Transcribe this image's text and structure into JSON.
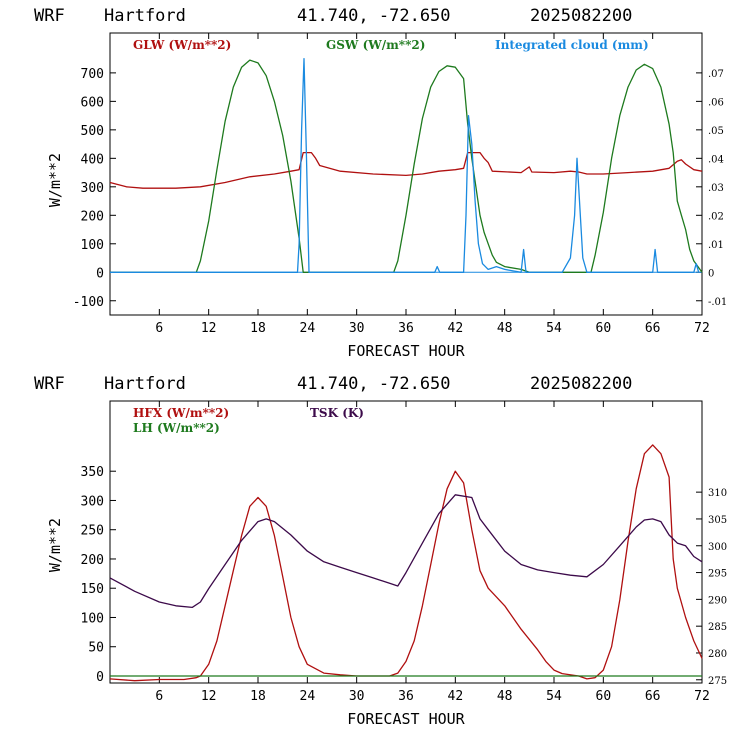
{
  "colors": {
    "red": "#b01010",
    "green": "#1e7a1e",
    "blue": "#1a8ae0",
    "purple": "#3c0a4a",
    "zero_line": "#1e7a1e"
  },
  "chart_data": [
    {
      "type": "line",
      "header": {
        "model": "WRF",
        "site": "Hartford",
        "coords": "41.740, -72.650",
        "run": "2025082200"
      },
      "xlabel": "FORECAST HOUR",
      "ylabel": "W/m**2",
      "xlim": [
        0,
        72
      ],
      "ylim": [
        -150,
        840
      ],
      "y2lim": [
        -0.015,
        0.084
      ],
      "x_ticks": [
        6,
        12,
        18,
        24,
        30,
        36,
        42,
        48,
        54,
        60,
        66,
        72
      ],
      "y_ticks": [
        -100,
        0,
        100,
        200,
        300,
        400,
        500,
        600,
        700
      ],
      "y2_ticks": [
        -0.01,
        0,
        0.01,
        0.02,
        0.03,
        0.04,
        0.05,
        0.06,
        0.07
      ],
      "y2_tick_labels": [
        "-.01",
        "0",
        ".01",
        ".02",
        ".03",
        ".04",
        ".05",
        ".06",
        ".07"
      ],
      "series": [
        {
          "name": "GLW (W/m**2)",
          "axis": "left",
          "points": [
            [
              0,
              315
            ],
            [
              2,
              300
            ],
            [
              4,
              295
            ],
            [
              8,
              295
            ],
            [
              11,
              300
            ],
            [
              14,
              315
            ],
            [
              17,
              335
            ],
            [
              20,
              345
            ],
            [
              22,
              355
            ],
            [
              23,
              360
            ],
            [
              23.5,
              420
            ],
            [
              24.5,
              420
            ],
            [
              25,
              400
            ],
            [
              25.5,
              375
            ],
            [
              28,
              355
            ],
            [
              32,
              345
            ],
            [
              36,
              340
            ],
            [
              38,
              345
            ],
            [
              40,
              355
            ],
            [
              42,
              360
            ],
            [
              43,
              365
            ],
            [
              43.5,
              420
            ],
            [
              45,
              420
            ],
            [
              45.5,
              400
            ],
            [
              46,
              385
            ],
            [
              46.5,
              355
            ],
            [
              50,
              350
            ],
            [
              51,
              370
            ],
            [
              51.3,
              352
            ],
            [
              54,
              350
            ],
            [
              56,
              355
            ],
            [
              57,
              352
            ],
            [
              58,
              345
            ],
            [
              60,
              345
            ],
            [
              63,
              350
            ],
            [
              66,
              355
            ],
            [
              68,
              365
            ],
            [
              69,
              390
            ],
            [
              69.5,
              395
            ],
            [
              70,
              380
            ],
            [
              71,
              360
            ],
            [
              72,
              355
            ]
          ]
        },
        {
          "name": "GSW (W/m**2)",
          "axis": "left",
          "points": [
            [
              0,
              0
            ],
            [
              10.5,
              0
            ],
            [
              11,
              40
            ],
            [
              12,
              180
            ],
            [
              13,
              360
            ],
            [
              14,
              530
            ],
            [
              15,
              650
            ],
            [
              16,
              720
            ],
            [
              17,
              745
            ],
            [
              18,
              735
            ],
            [
              19,
              690
            ],
            [
              20,
              600
            ],
            [
              21,
              480
            ],
            [
              22,
              320
            ],
            [
              23,
              120
            ],
            [
              23.5,
              0
            ],
            [
              34.5,
              0
            ],
            [
              35,
              40
            ],
            [
              36,
              200
            ],
            [
              37,
              380
            ],
            [
              38,
              540
            ],
            [
              39,
              650
            ],
            [
              40,
              705
            ],
            [
              41,
              725
            ],
            [
              42,
              720
            ],
            [
              43,
              680
            ],
            [
              43.5,
              520
            ],
            [
              44,
              400
            ],
            [
              44.5,
              300
            ],
            [
              45,
              200
            ],
            [
              45.5,
              140
            ],
            [
              46,
              100
            ],
            [
              46.5,
              60
            ],
            [
              47,
              35
            ],
            [
              48,
              20
            ],
            [
              50,
              10
            ],
            [
              51,
              0
            ],
            [
              58.5,
              0
            ],
            [
              59,
              60
            ],
            [
              60,
              210
            ],
            [
              61,
              400
            ],
            [
              62,
              550
            ],
            [
              63,
              650
            ],
            [
              64,
              710
            ],
            [
              65,
              730
            ],
            [
              66,
              715
            ],
            [
              67,
              650
            ],
            [
              68,
              520
            ],
            [
              68.5,
              420
            ],
            [
              69,
              250
            ],
            [
              69.5,
              200
            ],
            [
              70,
              150
            ],
            [
              70.5,
              80
            ],
            [
              71,
              40
            ],
            [
              72,
              0
            ]
          ]
        },
        {
          "name": "Integrated cloud (mm)",
          "axis": "right",
          "points": [
            [
              0,
              0
            ],
            [
              22.8,
              0
            ],
            [
              23,
              0.01
            ],
            [
              23.3,
              0.05
            ],
            [
              23.6,
              0.075
            ],
            [
              23.9,
              0.04
            ],
            [
              24.2,
              0
            ],
            [
              39.5,
              0
            ],
            [
              39.8,
              0.002
            ],
            [
              40.1,
              0
            ],
            [
              43,
              0
            ],
            [
              43.3,
              0.02
            ],
            [
              43.6,
              0.055
            ],
            [
              44,
              0.045
            ],
            [
              44.4,
              0.025
            ],
            [
              44.8,
              0.01
            ],
            [
              45.3,
              0.003
            ],
            [
              46,
              0.001
            ],
            [
              47,
              0.002
            ],
            [
              48,
              0.001
            ],
            [
              50,
              0
            ],
            [
              50.3,
              0.008
            ],
            [
              50.6,
              0
            ],
            [
              55,
              0
            ],
            [
              56,
              0.005
            ],
            [
              56.5,
              0.02
            ],
            [
              56.8,
              0.04
            ],
            [
              57.1,
              0.025
            ],
            [
              57.5,
              0.005
            ],
            [
              58,
              0
            ],
            [
              66,
              0
            ],
            [
              66.3,
              0.008
            ],
            [
              66.6,
              0
            ],
            [
              71,
              0
            ],
            [
              71.3,
              0.003
            ],
            [
              71.6,
              0
            ]
          ]
        }
      ],
      "legend": [
        "GLW (W/m**2)",
        "GSW (W/m**2)",
        "Integrated cloud (mm)"
      ]
    },
    {
      "type": "line",
      "header": {
        "model": "WRF",
        "site": "Hartford",
        "coords": "41.740, -72.650",
        "run": "2025082200"
      },
      "xlabel": "FORECAST HOUR",
      "ylabel": "W/m**2",
      "xlim": [
        0,
        72
      ],
      "ylim": [
        -12,
        470
      ],
      "y2lim": [
        274.4,
        327
      ],
      "x_ticks": [
        6,
        12,
        18,
        24,
        30,
        36,
        42,
        48,
        54,
        60,
        66,
        72
      ],
      "y_ticks": [
        0,
        50,
        100,
        150,
        200,
        250,
        300,
        350
      ],
      "y2_ticks": [
        275,
        280,
        285,
        290,
        295,
        300,
        305,
        310
      ],
      "series": [
        {
          "name": "HFX (W/m**2)",
          "axis": "left",
          "points": [
            [
              0,
              -5
            ],
            [
              3,
              -8
            ],
            [
              6,
              -6
            ],
            [
              9,
              -6
            ],
            [
              10.5,
              -3
            ],
            [
              11,
              0
            ],
            [
              12,
              20
            ],
            [
              13,
              60
            ],
            [
              14,
              120
            ],
            [
              15,
              180
            ],
            [
              16,
              240
            ],
            [
              17,
              290
            ],
            [
              18,
              305
            ],
            [
              19,
              290
            ],
            [
              20,
              240
            ],
            [
              21,
              170
            ],
            [
              22,
              100
            ],
            [
              23,
              50
            ],
            [
              24,
              20
            ],
            [
              26,
              5
            ],
            [
              28,
              2
            ],
            [
              30,
              0
            ],
            [
              34,
              0
            ],
            [
              35,
              5
            ],
            [
              36,
              25
            ],
            [
              37,
              60
            ],
            [
              38,
              120
            ],
            [
              39,
              190
            ],
            [
              40,
              260
            ],
            [
              41,
              320
            ],
            [
              42,
              350
            ],
            [
              43,
              330
            ],
            [
              44,
              250
            ],
            [
              45,
              180
            ],
            [
              46,
              150
            ],
            [
              48,
              120
            ],
            [
              50,
              80
            ],
            [
              52,
              45
            ],
            [
              53,
              25
            ],
            [
              54,
              10
            ],
            [
              55,
              4
            ],
            [
              57,
              0
            ],
            [
              58,
              -5
            ],
            [
              59,
              -3
            ],
            [
              60,
              10
            ],
            [
              61,
              50
            ],
            [
              62,
              130
            ],
            [
              63,
              230
            ],
            [
              64,
              320
            ],
            [
              65,
              380
            ],
            [
              66,
              395
            ],
            [
              67,
              380
            ],
            [
              68,
              340
            ],
            [
              68.5,
              200
            ],
            [
              69,
              150
            ],
            [
              70,
              100
            ],
            [
              71,
              60
            ],
            [
              72,
              30
            ]
          ]
        },
        {
          "name": "LH (W/m**2)",
          "axis": "left",
          "points": [
            [
              0,
              0
            ],
            [
              72,
              0
            ]
          ]
        },
        {
          "name": "TSK (K)",
          "axis": "right",
          "points": [
            [
              0,
              294
            ],
            [
              3,
              291.5
            ],
            [
              6,
              289.5
            ],
            [
              8,
              288.8
            ],
            [
              10,
              288.5
            ],
            [
              11,
              289.5
            ],
            [
              12,
              292
            ],
            [
              14,
              296.5
            ],
            [
              16,
              301
            ],
            [
              18,
              304.5
            ],
            [
              19,
              305
            ],
            [
              20,
              304.5
            ],
            [
              22,
              302
            ],
            [
              24,
              299
            ],
            [
              26,
              297
            ],
            [
              28,
              296
            ],
            [
              30,
              295
            ],
            [
              32,
              294
            ],
            [
              34,
              293
            ],
            [
              35,
              292.5
            ],
            [
              36,
              295
            ],
            [
              38,
              300.5
            ],
            [
              40,
              306
            ],
            [
              42,
              309.5
            ],
            [
              44,
              309
            ],
            [
              45,
              305
            ],
            [
              46,
              303
            ],
            [
              48,
              299
            ],
            [
              50,
              296.5
            ],
            [
              52,
              295.5
            ],
            [
              54,
              295
            ],
            [
              56,
              294.5
            ],
            [
              58,
              294.2
            ],
            [
              60,
              296.5
            ],
            [
              62,
              300
            ],
            [
              64,
              303.5
            ],
            [
              65,
              304.8
            ],
            [
              66,
              305
            ],
            [
              67,
              304.5
            ],
            [
              68,
              302
            ],
            [
              69,
              300.5
            ],
            [
              70,
              300
            ],
            [
              71,
              298
            ],
            [
              72,
              297
            ]
          ]
        }
      ],
      "legend": [
        "HFX (W/m**2)",
        "LH (W/m**2)",
        "TSK (K)"
      ]
    }
  ]
}
